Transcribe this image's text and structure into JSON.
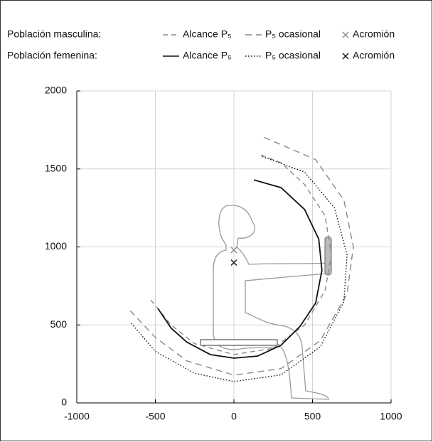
{
  "chart_data": {
    "type": "line",
    "xlim": [
      -1000,
      1000
    ],
    "xticks": [
      -1000,
      -500,
      0,
      500,
      1000
    ],
    "ylim": [
      0,
      2000
    ],
    "yticks": [
      0,
      500,
      1000,
      1500,
      2000
    ],
    "grid": true,
    "groups": [
      {
        "label": "Población masculina:",
        "series": [
          {
            "name": "Alcance P₅",
            "color": "#888888",
            "line_style": "dashed",
            "x": [
              -529,
              -400,
              -250,
              0,
              250,
              450,
              580,
              620,
              580,
              450,
              300,
              170
            ],
            "y": [
              660,
              500,
              380,
              310,
              350,
              500,
              720,
              950,
              1200,
              1400,
              1540,
              1590
            ]
          },
          {
            "name": "P₅ ocasional",
            "color": "#888888",
            "line_style": "longdash",
            "x": [
              -661,
              -500,
              -300,
              0,
              300,
              550,
              720,
              760,
              700,
              520,
              180
            ],
            "y": [
              592,
              420,
              270,
              178,
              220,
              400,
              700,
              1000,
              1300,
              1560,
              1708
            ]
          },
          {
            "name": "Acromión",
            "color": "#888888",
            "marker": "x",
            "x": [
              0
            ],
            "y": [
              980
            ]
          }
        ]
      },
      {
        "label": "Población femenina:",
        "series": [
          {
            "name": "Alcance P₅",
            "color": "#111111",
            "line_style": "solid",
            "x": [
              -484,
              -400,
              -300,
              -150,
              0,
              150,
              300,
              420,
              520,
              560,
              540,
              450,
              300,
              127
            ],
            "y": [
              606,
              480,
              390,
              310,
              287,
              300,
              370,
              490,
              640,
              850,
              1050,
              1240,
              1380,
              1430
            ]
          },
          {
            "name": "P₅ ocasional",
            "color": "#111111",
            "line_style": "dotted",
            "x": [
              -652,
              -500,
              -250,
              0,
              300,
              550,
              700,
              720,
              640,
              450,
              176
            ],
            "y": [
              510,
              330,
              190,
              137,
              180,
              360,
              650,
              950,
              1250,
              1480,
              1581
            ]
          },
          {
            "name": "Acromión",
            "color": "#111111",
            "marker": "x",
            "x": [
              0
            ],
            "y": [
              900
            ]
          }
        ]
      }
    ]
  }
}
